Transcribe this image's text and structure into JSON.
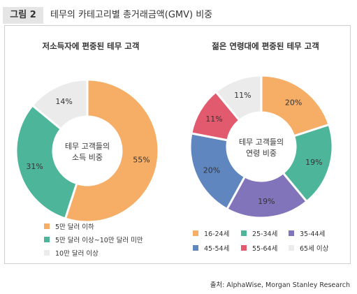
{
  "header": {
    "figure_label": "그림 2",
    "title": "테무의 카테고리별 총거래금액(GMV) 비중"
  },
  "chart_data": [
    {
      "type": "pie",
      "title": "저소득자에 편중된 테무 고객",
      "center_label": [
        "테무 고객들의",
        "소득 비중"
      ],
      "categories": [
        "5만 달러 이하",
        "5만 달러 이상~10만 달러 미만",
        "10만 달러 이상"
      ],
      "values": [
        55,
        31,
        14
      ],
      "labels": [
        "55%",
        "31%",
        "14%"
      ],
      "colors": [
        "#f6ad66",
        "#4db59a",
        "#ebebeb"
      ]
    },
    {
      "type": "pie",
      "title": "젊은 연령대에 편중된 테무 고객",
      "center_label": [
        "테무 고객들의",
        "연령 비중"
      ],
      "categories": [
        "16-24세",
        "25-34세",
        "35-44세",
        "45-54세",
        "55-64세",
        "65세 이상"
      ],
      "values": [
        20,
        19,
        19,
        20,
        11,
        11
      ],
      "labels": [
        "20%",
        "19%",
        "19%",
        "20%",
        "11%",
        "11%"
      ],
      "colors": [
        "#f6ad66",
        "#4db59a",
        "#8174bb",
        "#5f86bf",
        "#e15a6e",
        "#ebebeb"
      ]
    }
  ],
  "source": "출처: AlphaWise, Morgan Stanley Research"
}
